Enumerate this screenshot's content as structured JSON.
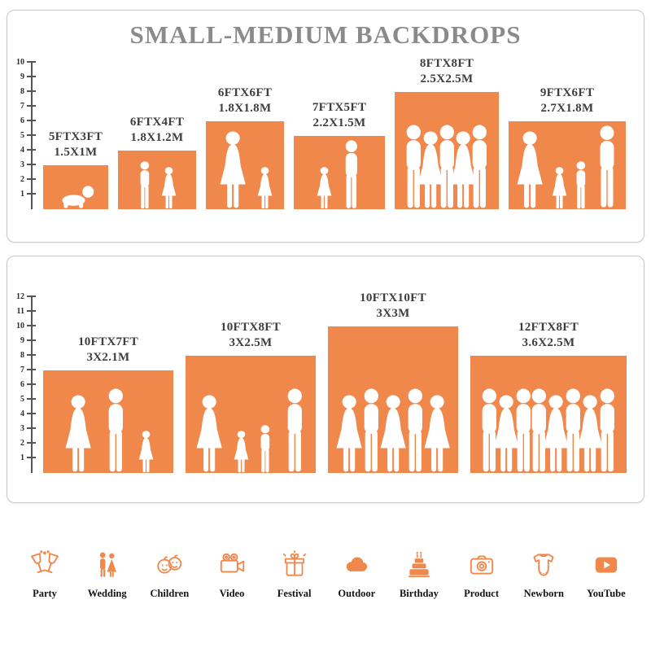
{
  "title": "SMALL-MEDIUM BACKDROPS",
  "accent_color": "#F0884C",
  "panels": [
    {
      "name": "top",
      "ticks": [
        1,
        2,
        3,
        4,
        5,
        6,
        7,
        8,
        9,
        10
      ],
      "bars": [
        {
          "size_ft": "5FTX3FT",
          "size_m": "1.5X1M",
          "width_ft": 5,
          "height_ft": 3,
          "figures": [
            "baby"
          ]
        },
        {
          "size_ft": "6FTX4FT",
          "size_m": "1.8X1.2M",
          "width_ft": 6,
          "height_ft": 4,
          "figures": [
            "boy",
            "girl"
          ]
        },
        {
          "size_ft": "6FTX6FT",
          "size_m": "1.8X1.8M",
          "width_ft": 6,
          "height_ft": 6,
          "figures": [
            "woman",
            "girl"
          ]
        },
        {
          "size_ft": "7FTX5FT",
          "size_m": "2.2X1.5M",
          "width_ft": 7,
          "height_ft": 5,
          "figures": [
            "girl",
            "man"
          ]
        },
        {
          "size_ft": "8FTX8FT",
          "size_m": "2.5X2.5M",
          "width_ft": 8,
          "height_ft": 8,
          "figures": [
            "man",
            "woman",
            "man",
            "woman",
            "man"
          ]
        },
        {
          "size_ft": "9FTX6FT",
          "size_m": "2.7X1.8M",
          "width_ft": 9,
          "height_ft": 6,
          "figures": [
            "woman",
            "girl",
            "boy",
            "man"
          ]
        }
      ]
    },
    {
      "name": "bottom",
      "ticks": [
        1,
        2,
        3,
        4,
        5,
        6,
        7,
        8,
        9,
        10,
        11,
        12
      ],
      "bars": [
        {
          "size_ft": "10FTX7FT",
          "size_m": "3X2.1M",
          "width_ft": 10,
          "height_ft": 7,
          "figures": [
            "woman",
            "man",
            "girl"
          ]
        },
        {
          "size_ft": "10FTX8FT",
          "size_m": "3X2.5M",
          "width_ft": 10,
          "height_ft": 8,
          "figures": [
            "woman",
            "girl",
            "boy",
            "man"
          ]
        },
        {
          "size_ft": "10FTX10FT",
          "size_m": "3X3M",
          "width_ft": 10,
          "height_ft": 10,
          "figures": [
            "woman",
            "man",
            "woman",
            "man",
            "woman"
          ]
        },
        {
          "size_ft": "12FTX8FT",
          "size_m": "3.6X2.5M",
          "width_ft": 12,
          "height_ft": 8,
          "figures": [
            "man",
            "woman",
            "man",
            "man",
            "woman",
            "man",
            "woman",
            "man"
          ]
        }
      ]
    }
  ],
  "categories": [
    {
      "label": "Party",
      "icon": "party-icon"
    },
    {
      "label": "Wedding",
      "icon": "wedding-icon"
    },
    {
      "label": "Children",
      "icon": "children-icon"
    },
    {
      "label": "Video",
      "icon": "video-icon"
    },
    {
      "label": "Festival",
      "icon": "festival-icon"
    },
    {
      "label": "Outdoor",
      "icon": "outdoor-icon"
    },
    {
      "label": "Birthday",
      "icon": "birthday-icon"
    },
    {
      "label": "Product",
      "icon": "product-icon"
    },
    {
      "label": "Newborn",
      "icon": "newborn-icon"
    },
    {
      "label": "YouTube",
      "icon": "youtube-icon"
    }
  ]
}
